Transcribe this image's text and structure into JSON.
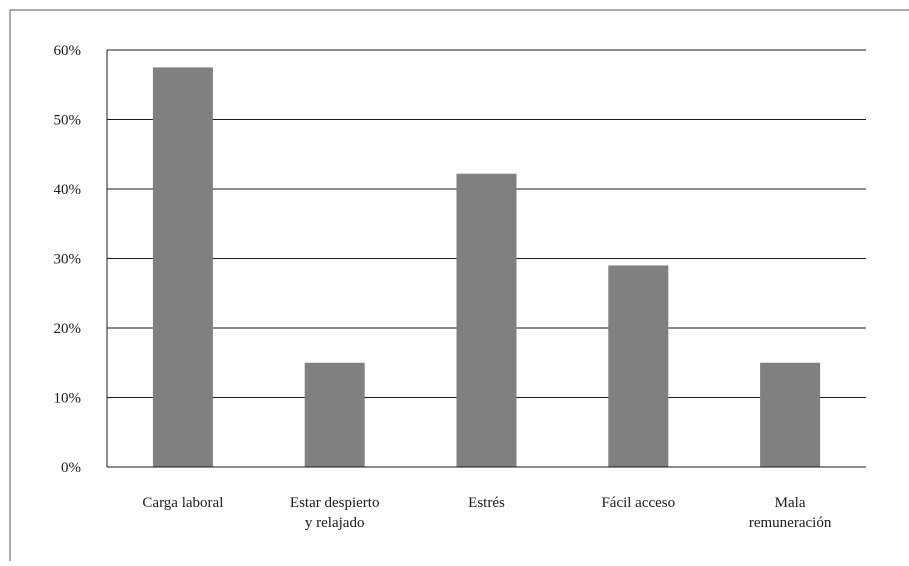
{
  "chart_data": {
    "type": "bar",
    "categories": [
      [
        "Carga laboral"
      ],
      [
        "Estar despierto",
        "y relajado"
      ],
      [
        "Estrés"
      ],
      [
        "Fácil acceso"
      ],
      [
        "Mala",
        "remuneración"
      ]
    ],
    "values": [
      57.5,
      15,
      42.2,
      29,
      15
    ],
    "ylim": [
      0,
      60
    ],
    "yticks": [
      0,
      10,
      20,
      30,
      40,
      50,
      60
    ],
    "ytick_labels": [
      "0%",
      "10%",
      "20%",
      "30%",
      "40%",
      "50%",
      "60%"
    ],
    "grid": true,
    "bar_color": "#808083",
    "title": "",
    "xlabel": "",
    "ylabel": ""
  }
}
